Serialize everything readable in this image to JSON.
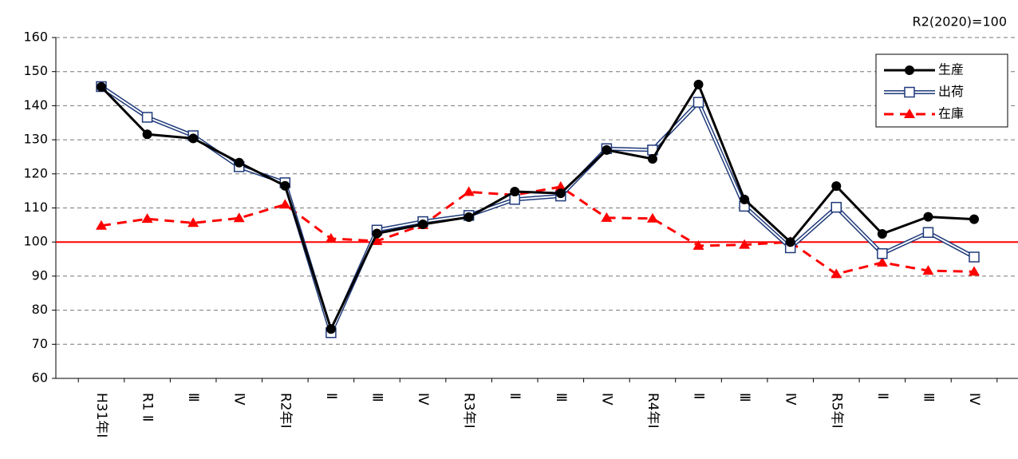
{
  "chart_data": {
    "type": "line",
    "annotation": "R2(2020)=100",
    "categories": [
      "H31年Ⅰ",
      "R1 Ⅱ",
      "Ⅲ",
      "Ⅳ",
      "R2年Ⅰ",
      "Ⅱ",
      "Ⅲ",
      "Ⅳ",
      "R3年Ⅰ",
      "Ⅱ",
      "Ⅲ",
      "Ⅳ",
      "R4年Ⅰ",
      "Ⅱ",
      "Ⅲ",
      "Ⅳ",
      "R5年Ⅰ",
      "Ⅱ",
      "Ⅲ",
      "Ⅳ"
    ],
    "series": [
      {
        "name": "生産",
        "color": "#000000",
        "marker": "circle",
        "line": "solid",
        "values": [
          145.5,
          131.6,
          130.4,
          123.3,
          116.5,
          74.5,
          102.5,
          105.2,
          107.3,
          114.8,
          114.3,
          127.0,
          124.4,
          146.2,
          112.5,
          100.0,
          116.4,
          102.4,
          107.4,
          106.7
        ]
      },
      {
        "name": "出荷",
        "color": "#1f3a7a",
        "marker": "square",
        "line": "double",
        "values": [
          145.6,
          136.6,
          131.2,
          122.1,
          117.4,
          73.4,
          103.5,
          106.0,
          107.8,
          112.5,
          113.5,
          127.4,
          127.0,
          141.0,
          110.5,
          98.3,
          110.2,
          96.6,
          102.8,
          95.6
        ]
      },
      {
        "name": "在庫",
        "color": "#ff0000",
        "marker": "triangle",
        "line": "dashed",
        "values": [
          104.8,
          106.8,
          105.6,
          107.0,
          111.0,
          101.0,
          100.3,
          105.0,
          114.7,
          113.8,
          116.2,
          107.1,
          106.9,
          98.9,
          99.2,
          100.0,
          90.6,
          94.0,
          91.6,
          91.3
        ]
      }
    ],
    "ylim": [
      60,
      160
    ],
    "yticks": [
      60,
      70,
      80,
      90,
      100,
      110,
      120,
      130,
      140,
      150,
      160
    ],
    "grid": true,
    "hline": 100,
    "hline_color": "#ff0000",
    "legend": "upper right"
  }
}
